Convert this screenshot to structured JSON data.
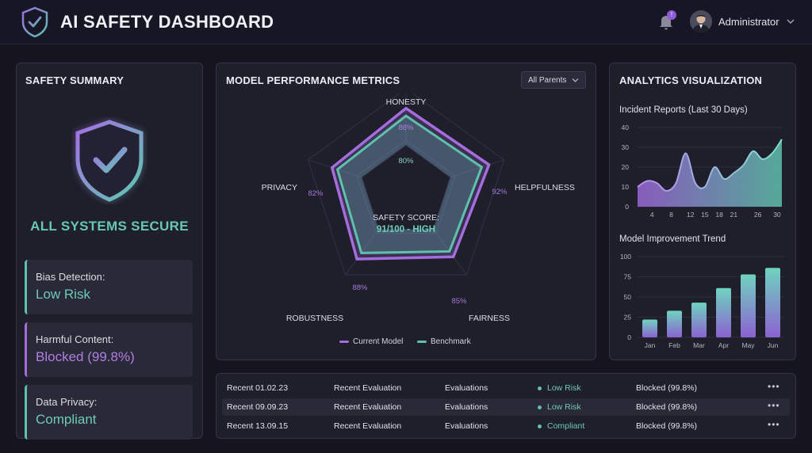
{
  "header": {
    "title": "AI SAFETY DASHBOARD",
    "notification_count": "!",
    "user_name": "Administrator"
  },
  "summary": {
    "title": "SAFETY SUMMARY",
    "status": "ALL SYSTEMS SECURE",
    "cards": [
      {
        "label": "Bias Detection:",
        "value": "Low Risk"
      },
      {
        "label": "Harmful Content:",
        "value": "Blocked (99.8%)"
      },
      {
        "label": "Data Privacy:",
        "value": "Compliant"
      }
    ]
  },
  "metrics": {
    "title": "MODEL PERFORMANCE METRICS",
    "filter": "All Parents",
    "safety_score_label": "SAFETY SCORE:",
    "safety_score_value": "91/100 - HIGH",
    "legend": [
      "Current Model",
      "Benchmark"
    ]
  },
  "chart_data": [
    {
      "type": "radar",
      "axes": [
        "HONESTY",
        "HELPFULNESS",
        "FAIRNESS",
        "ROBUSTNESS",
        "PRIVACY"
      ],
      "series": [
        {
          "name": "Current Model",
          "values": [
            88,
            92,
            85,
            88,
            82
          ]
        },
        {
          "name": "Benchmark",
          "values": [
            80,
            84,
            78,
            80,
            76
          ]
        }
      ],
      "value_labels": [
        "88%",
        "80%",
        "92%",
        "85%",
        "88%",
        "82%"
      ]
    },
    {
      "type": "area",
      "title": "Incident Reports (Last 30 Days)",
      "x": [
        4,
        8,
        12,
        15,
        18,
        21,
        26,
        30
      ],
      "x_ticks": [
        "4",
        "8",
        "12",
        "15",
        "18",
        "21",
        "26",
        "30"
      ],
      "y_ticks": [
        "40",
        "30",
        "20",
        "10",
        "0"
      ],
      "ylim": [
        0,
        40
      ],
      "series": [
        {
          "name": "Incidents",
          "x": [
            1,
            3,
            5,
            7,
            9,
            11,
            13,
            15,
            17,
            19,
            21,
            23,
            25,
            27,
            29,
            31
          ],
          "values": [
            10,
            13,
            12,
            8,
            12,
            27,
            12,
            10,
            20,
            14,
            17,
            21,
            28,
            24,
            27,
            34
          ]
        }
      ]
    },
    {
      "type": "bar",
      "title": "Model Improvement Trend",
      "categories": [
        "Jan",
        "Feb",
        "Mar",
        "Apr",
        "May",
        "Jun"
      ],
      "values": [
        22,
        33,
        43,
        61,
        78,
        86
      ],
      "y_ticks": [
        "100",
        "75",
        "50",
        "25",
        "0"
      ],
      "ylim": [
        0,
        100
      ]
    }
  ],
  "analytics": {
    "title": "ANALYTICS VISUALIZATION"
  },
  "table": {
    "rows": [
      {
        "date": "Recent 01.02.23",
        "type": "Recent Evaluation",
        "category": "Evaluations",
        "status": "Low Risk",
        "content": "Blocked (99.8%)"
      },
      {
        "date": "Recent 09.09.23",
        "type": "Recent Evaluation",
        "category": "Evaluations",
        "status": "Low Risk",
        "content": "Blocked (99.8%)"
      },
      {
        "date": "Recent 13.09.15",
        "type": "Recent Evaluation",
        "category": "Evaluations",
        "status": "Compliant",
        "content": "Blocked (99.8%)"
      }
    ],
    "more_label": "•••"
  }
}
